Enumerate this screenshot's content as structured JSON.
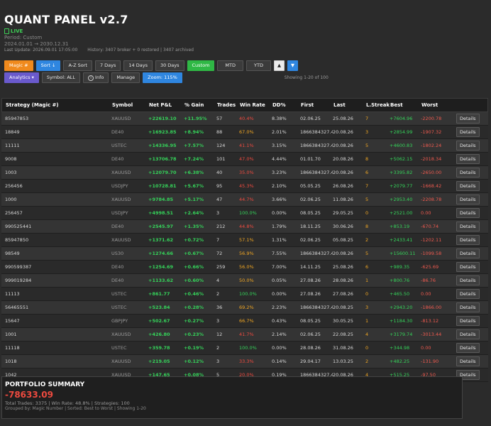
{
  "header": {
    "title": "QUANT PANEL  v2.7",
    "live_label": "LIVE",
    "period": "Period: Custom",
    "range": "2024.01.01 → 2030.12.31",
    "last_update": "Last Update: 2026.09.01 17:05:00",
    "history": "History: 3407 broker + 0 restored | 3407 archived"
  },
  "toolbar": {
    "magic": "Magic #",
    "sort": "Sort ↓",
    "az_sort": "A-Z Sort",
    "days7": "7 Days",
    "days14": "14 Days",
    "days30": "30 Days",
    "custom": "Custom",
    "mtd": "MTD",
    "ytd": "YTD",
    "up": "▲",
    "down": "▼"
  },
  "toolbar2": {
    "analytics": "Analytics ▾",
    "symbol": "Symbol: ALL",
    "info": "Info",
    "manage": "Manage",
    "zoom": "Zoom: 115%",
    "showing": "Showing 1-20 of 100"
  },
  "table": {
    "headers": [
      "Strategy (Magic #)",
      "Symbol",
      "Net P&L",
      "% Gain",
      "Trades",
      "Win Rate",
      "DD%",
      "First",
      "Last",
      "L.Streak",
      "Best",
      "Worst",
      ""
    ],
    "details_label": "Details",
    "rows": [
      {
        "strategy": "85947853",
        "symbol": "XAUUSD",
        "pnl": "+22619.10",
        "gain": "+11.95%",
        "trades": "57",
        "wr": "40.4%",
        "wr_c": "red",
        "dd": "8.38%",
        "first": "02.06.25",
        "last": "25.08.26",
        "ls": "7",
        "best": "+7604.96",
        "worst": "-2200.78"
      },
      {
        "strategy": "18849",
        "symbol": "DE40",
        "pnl": "+16923.85",
        "gain": "+8.94%",
        "trades": "88",
        "wr": "67.0%",
        "wr_c": "orange",
        "dd": "2.01%",
        "first": "1866384327.44",
        "last": "20.08.26",
        "ls": "3",
        "best": "+2854.99",
        "worst": "-1907.32"
      },
      {
        "strategy": "11111",
        "symbol": "USTEC",
        "pnl": "+14336.95",
        "gain": "+7.57%",
        "trades": "124",
        "wr": "41.1%",
        "wr_c": "red",
        "dd": "3.15%",
        "first": "1866384327.44",
        "last": "20.08.26",
        "ls": "5",
        "best": "+4600.83",
        "worst": "-1802.24"
      },
      {
        "strategy": "9008",
        "symbol": "DE40",
        "pnl": "+13706.78",
        "gain": "+7.24%",
        "trades": "101",
        "wr": "47.0%",
        "wr_c": "red",
        "dd": "4.44%",
        "first": "01.01.70",
        "last": "20.08.26",
        "ls": "8",
        "best": "+5062.15",
        "worst": "-2018.34"
      },
      {
        "strategy": "1003",
        "symbol": "XAUUSD",
        "pnl": "+12079.70",
        "gain": "+6.38%",
        "trades": "40",
        "wr": "35.0%",
        "wr_c": "red",
        "dd": "3.23%",
        "first": "1866384327.44",
        "last": "20.08.26",
        "ls": "6",
        "best": "+3395.82",
        "worst": "-2650.00"
      },
      {
        "strategy": "256456",
        "symbol": "USDJPY",
        "pnl": "+10728.81",
        "gain": "+5.67%",
        "trades": "95",
        "wr": "45.3%",
        "wr_c": "red",
        "dd": "2.10%",
        "first": "05.05.25",
        "last": "26.08.26",
        "ls": "7",
        "best": "+2079.77",
        "worst": "-1668.42"
      },
      {
        "strategy": "1000",
        "symbol": "XAUUSD",
        "pnl": "+9784.85",
        "gain": "+5.17%",
        "trades": "47",
        "wr": "44.7%",
        "wr_c": "red",
        "dd": "3.66%",
        "first": "02.06.25",
        "last": "11.08.26",
        "ls": "5",
        "best": "+2953.40",
        "worst": "-2208.78"
      },
      {
        "strategy": "256457",
        "symbol": "USDJPY",
        "pnl": "+4998.51",
        "gain": "+2.64%",
        "trades": "3",
        "wr": "100.0%",
        "wr_c": "green",
        "dd": "0.00%",
        "first": "08.05.25",
        "last": "29.05.25",
        "ls": "0",
        "best": "+2521.00",
        "worst": "0.00"
      },
      {
        "strategy": "990525441",
        "symbol": "DE40",
        "pnl": "+2545.97",
        "gain": "+1.35%",
        "trades": "212",
        "wr": "44.8%",
        "wr_c": "red",
        "dd": "1.79%",
        "first": "18.11.25",
        "last": "30.06.26",
        "ls": "8",
        "best": "+853.19",
        "worst": "-670.74"
      },
      {
        "strategy": "85947850",
        "symbol": "XAUUSD",
        "pnl": "+1371.62",
        "gain": "+0.72%",
        "trades": "7",
        "wr": "57.1%",
        "wr_c": "orange",
        "dd": "1.31%",
        "first": "02.06.25",
        "last": "05.08.25",
        "ls": "2",
        "best": "+2433.41",
        "worst": "-1202.11"
      },
      {
        "strategy": "98549",
        "symbol": "US30",
        "pnl": "+1274.66",
        "gain": "+0.67%",
        "trades": "72",
        "wr": "56.9%",
        "wr_c": "orange",
        "dd": "7.55%",
        "first": "1866384327.44",
        "last": "20.08.26",
        "ls": "5",
        "best": "+15600.11",
        "worst": "-1099.58"
      },
      {
        "strategy": "990599387",
        "symbol": "DE40",
        "pnl": "+1254.69",
        "gain": "+0.66%",
        "trades": "259",
        "wr": "56.0%",
        "wr_c": "orange",
        "dd": "7.00%",
        "first": "14.11.25",
        "last": "25.08.26",
        "ls": "6",
        "best": "+989.35",
        "worst": "-625.69"
      },
      {
        "strategy": "999019284",
        "symbol": "DE40",
        "pnl": "+1133.62",
        "gain": "+0.60%",
        "trades": "4",
        "wr": "50.0%",
        "wr_c": "orange",
        "dd": "0.05%",
        "first": "27.08.26",
        "last": "28.08.26",
        "ls": "1",
        "best": "+800.76",
        "worst": "-86.76"
      },
      {
        "strategy": "11113",
        "symbol": "USTEC",
        "pnl": "+861.77",
        "gain": "+0.46%",
        "trades": "2",
        "wr": "100.0%",
        "wr_c": "green",
        "dd": "0.00%",
        "first": "27.08.26",
        "last": "27.08.26",
        "ls": "0",
        "best": "+465.50",
        "worst": "0.00"
      },
      {
        "strategy": "56465551",
        "symbol": "USTEC",
        "pnl": "+523.84",
        "gain": "+0.28%",
        "trades": "36",
        "wr": "69.2%",
        "wr_c": "orange",
        "dd": "2.23%",
        "first": "1866384327.44",
        "last": "20.08.25",
        "ls": "3",
        "best": "+2943.20",
        "worst": "-1866.00"
      },
      {
        "strategy": "15647",
        "symbol": "GBPJPY",
        "pnl": "+502.67",
        "gain": "+0.27%",
        "trades": "3",
        "wr": "66.7%",
        "wr_c": "orange",
        "dd": "0.43%",
        "first": "08.05.25",
        "last": "30.05.25",
        "ls": "1",
        "best": "+1184.30",
        "worst": "-813.12"
      },
      {
        "strategy": "1001",
        "symbol": "XAUUSD",
        "pnl": "+426.80",
        "gain": "+0.23%",
        "trades": "12",
        "wr": "41.7%",
        "wr_c": "red",
        "dd": "2.14%",
        "first": "02.06.25",
        "last": "22.08.25",
        "ls": "4",
        "best": "+3179.74",
        "worst": "-3013.44"
      },
      {
        "strategy": "11118",
        "symbol": "USTEC",
        "pnl": "+359.78",
        "gain": "+0.19%",
        "trades": "2",
        "wr": "100.0%",
        "wr_c": "green",
        "dd": "0.00%",
        "first": "28.08.26",
        "last": "31.08.26",
        "ls": "0",
        "best": "+344.98",
        "worst": "0.00"
      },
      {
        "strategy": "1018",
        "symbol": "XAUUSD",
        "pnl": "+219.05",
        "gain": "+0.12%",
        "trades": "3",
        "wr": "33.3%",
        "wr_c": "red",
        "dd": "0.14%",
        "first": "29.04.17",
        "last": "13.03.25",
        "ls": "2",
        "best": "+482.25",
        "worst": "-131.90"
      },
      {
        "strategy": "1042",
        "symbol": "XAUUSD",
        "pnl": "+147.65",
        "gain": "+0.08%",
        "trades": "5",
        "wr": "20.0%",
        "wr_c": "red",
        "dd": "0.19%",
        "first": "1866384327.44",
        "last": "20.08.26",
        "ls": "4",
        "best": "+515.25",
        "worst": "-97.50"
      }
    ]
  },
  "summary": {
    "title": "PORTFOLIO SUMMARY",
    "total": "-78633.09",
    "stats": "Total Trades: 3375 | Win Rate: 48.8% | Strategies: 100",
    "grouped": "Grouped by: Magic Number | Sorted: Best to Worst | Showing 1-20"
  },
  "colors": {
    "positive": "#35d35a",
    "negative": "#ee4a3f",
    "warning": "#f0a623",
    "accent_blue": "#2f86e0",
    "accent_orange": "#f08a1d"
  }
}
